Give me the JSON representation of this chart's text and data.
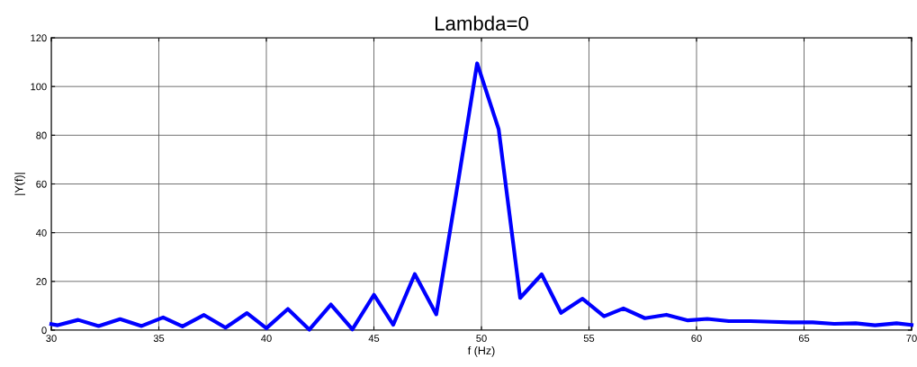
{
  "chart_data": {
    "type": "line",
    "title": "Lambda=0",
    "xlabel": "f (Hz)",
    "ylabel": "|Y(f)|",
    "series": [
      {
        "color": "#0000ff",
        "x": [
          30,
          30.3,
          31.25,
          32.2,
          33.2,
          34.2,
          35.2,
          36.1,
          37.1,
          38.1,
          39.1,
          40.0,
          41.0,
          42.0,
          43.0,
          44.0,
          45.0,
          45.9,
          46.9,
          47.9,
          48.9,
          49.8,
          50.8,
          51.8,
          52.8,
          53.7,
          54.7,
          55.7,
          56.6,
          57.6,
          58.6,
          59.6,
          60.5,
          61.5,
          62.5,
          63.5,
          64.4,
          65.4,
          66.4,
          67.4,
          68.3,
          69.3,
          70
        ],
        "values": [
          2.5,
          2,
          4.2,
          1.7,
          4.5,
          1.7,
          5.2,
          1.5,
          6.2,
          1,
          7,
          0.8,
          8.7,
          0.2,
          10.5,
          0.3,
          14.5,
          2.2,
          23,
          6.5,
          60,
          109.5,
          82.5,
          13.2,
          22.9,
          7.1,
          12.9,
          5.7,
          8.9,
          4.9,
          6.3,
          4,
          4.6,
          3.7,
          3.7,
          3.4,
          3.2,
          3.2,
          2.6,
          2.8,
          2,
          2.8,
          2.1
        ]
      }
    ],
    "xlim": [
      30,
      70
    ],
    "ylim": [
      0,
      120
    ],
    "xticks": [
      30,
      35,
      40,
      45,
      50,
      55,
      60,
      65,
      70
    ],
    "yticks": [
      0,
      20,
      40,
      60,
      80,
      100,
      120
    ],
    "grid": true,
    "line_style": "solid"
  }
}
